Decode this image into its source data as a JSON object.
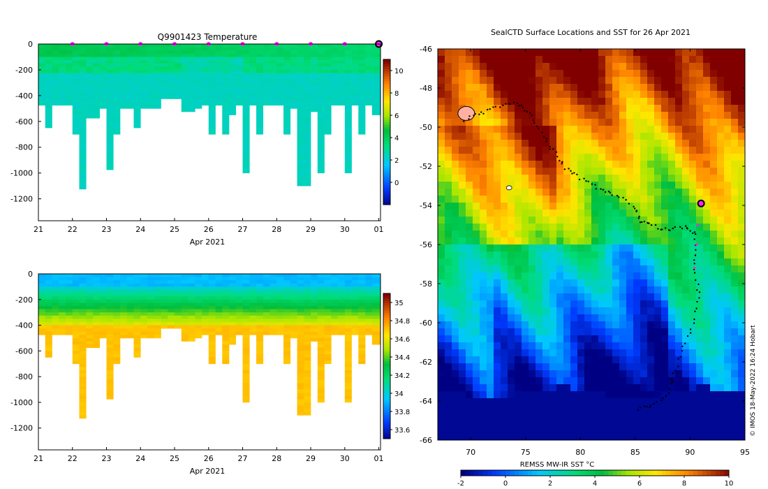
{
  "chart_data": [
    {
      "type": "heatmap",
      "title": "Q9901423  Temperature",
      "xlabel": "Apr 2021",
      "ylabel": "",
      "x_ticks": [
        "21",
        "22",
        "23",
        "24",
        "25",
        "26",
        "27",
        "28",
        "29",
        "30",
        "01"
      ],
      "y_ticks": [
        "0",
        "-200",
        "-400",
        "-600",
        "-800",
        "-1000",
        "-1200"
      ],
      "ylim": [
        -1370,
        0
      ],
      "xlim": [
        21,
        31.05
      ],
      "colorbar_ticks": [
        "10",
        "8",
        "6",
        "4",
        "2",
        "0"
      ],
      "colorbar_range": [
        -2,
        11
      ],
      "marker_days": [
        22,
        23,
        24,
        25,
        26,
        27,
        28,
        29,
        30
      ],
      "current_marker_day": 31,
      "profile_days": [
        21.0,
        21.2,
        21.4,
        21.6,
        21.8,
        22.0,
        22.2,
        22.4,
        22.6,
        22.8,
        23.0,
        23.2,
        23.4,
        23.6,
        23.8,
        24.0,
        24.2,
        24.4,
        24.6,
        24.8,
        25.0,
        25.2,
        25.4,
        25.6,
        25.8,
        26.0,
        26.2,
        26.4,
        26.6,
        26.8,
        27.0,
        27.2,
        27.4,
        27.6,
        27.8,
        28.0,
        28.2,
        28.4,
        28.6,
        28.8,
        29.0,
        29.2,
        29.4,
        29.6,
        29.8,
        30.0,
        30.2,
        30.4,
        30.6,
        30.8
      ],
      "profile_max_depths": [
        470,
        630,
        470,
        470,
        470,
        700,
        1110,
        570,
        570,
        480,
        970,
        690,
        480,
        480,
        640,
        490,
        500,
        500,
        420,
        410,
        420,
        520,
        510,
        490,
        470,
        700,
        470,
        700,
        530,
        470,
        1000,
        470,
        700,
        470,
        470,
        470,
        700,
        490,
        1090,
        1090,
        520,
        990,
        700,
        470,
        470,
        1000,
        470,
        700,
        470,
        530
      ],
      "surface_temp_start": 4.2,
      "deep_temp": 2.4
    },
    {
      "type": "heatmap",
      "title": "",
      "xlabel": "Apr 2021",
      "ylabel": "",
      "x_ticks": [
        "21",
        "22",
        "23",
        "24",
        "25",
        "26",
        "27",
        "28",
        "29",
        "30",
        "01"
      ],
      "y_ticks": [
        "0",
        "-200",
        "-400",
        "-600",
        "-800",
        "-1000",
        "-1200"
      ],
      "ylim": [
        -1370,
        0
      ],
      "xlim": [
        21,
        31.05
      ],
      "colorbar_ticks": [
        "35",
        "34.8",
        "34.6",
        "34.4",
        "34.2",
        "34",
        "33.8",
        "33.6"
      ],
      "colorbar_range": [
        33.5,
        35.1
      ],
      "surface_salinity": 33.9,
      "deep_salinity": 34.7
    },
    {
      "type": "map",
      "title": "SealCTD Surface Locations and SST for 26 Apr 2021",
      "xlabel": "",
      "ylabel": "",
      "x_ticks": [
        "70",
        "75",
        "80",
        "85",
        "90",
        "95"
      ],
      "y_ticks": [
        "-46",
        "-48",
        "-50",
        "-52",
        "-54",
        "-56",
        "-58",
        "-60",
        "-62",
        "-64",
        "-66"
      ],
      "xlim": [
        67,
        95
      ],
      "ylim": [
        -66,
        -46
      ],
      "colorbar_label": "REMSS MW-IR SST °C",
      "colorbar_ticks": [
        "-2",
        "0",
        "2",
        "4",
        "6",
        "8",
        "10"
      ],
      "colorbar_range": [
        -2,
        10
      ],
      "credit": "© IMOS 18-May-2022 16:24 Hobart",
      "current_location": {
        "lon": 91.0,
        "lat": -53.9
      },
      "track": [
        [
          69.5,
          -49.6
        ],
        [
          71,
          -49.3
        ],
        [
          72.6,
          -48.9
        ],
        [
          74.2,
          -48.8
        ],
        [
          75.3,
          -49.2
        ],
        [
          76.5,
          -50.3
        ],
        [
          77.5,
          -51.2
        ],
        [
          78.6,
          -52.1
        ],
        [
          80,
          -52.6
        ],
        [
          81.5,
          -53.1
        ],
        [
          83,
          -53.4
        ],
        [
          84.8,
          -54.0
        ],
        [
          85.5,
          -54.8
        ],
        [
          86.5,
          -55.0
        ],
        [
          88,
          -55.3
        ],
        [
          89.5,
          -55.1
        ],
        [
          90.5,
          -55.5
        ],
        [
          90.4,
          -57.0
        ],
        [
          90.8,
          -58.5
        ],
        [
          90.3,
          -60.0
        ],
        [
          89.2,
          -61.5
        ],
        [
          88.4,
          -62.8
        ],
        [
          88.1,
          -63.6
        ],
        [
          86.5,
          -64.2
        ],
        [
          85,
          -64.5
        ]
      ],
      "recent_track": [
        [
          91.0,
          -53.9
        ],
        [
          90.7,
          -55.0
        ],
        [
          90.6,
          -56.0
        ],
        [
          90.4,
          -57.2
        ]
      ]
    }
  ]
}
